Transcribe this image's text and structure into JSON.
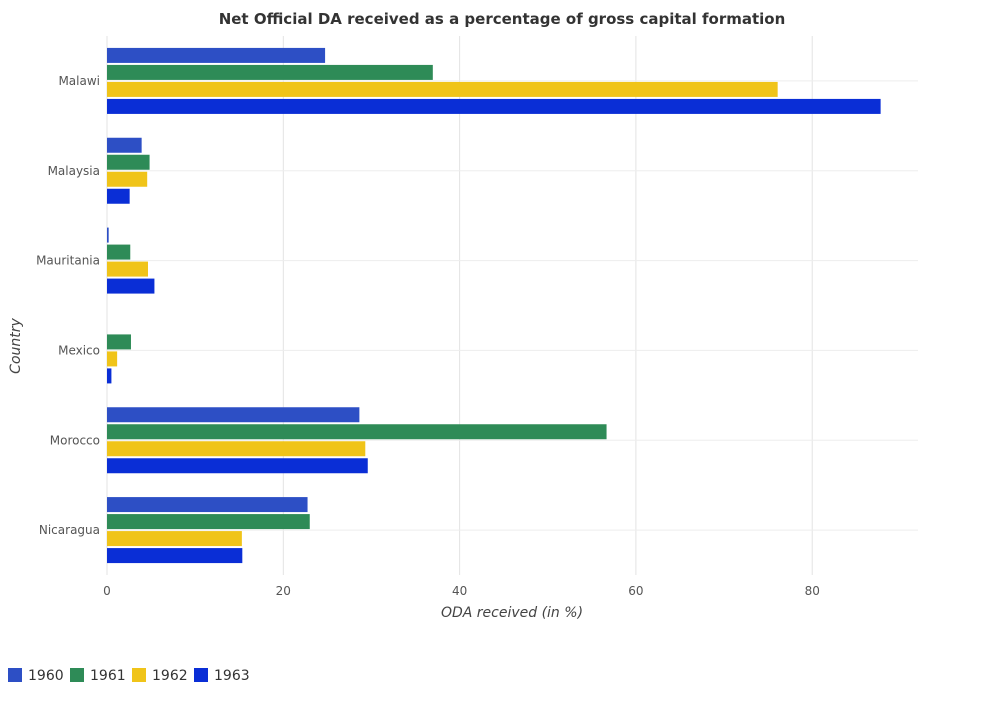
{
  "chart_data": {
    "type": "bar",
    "orientation": "horizontal",
    "title": "Net Official DA received as a percentage of gross capital formation",
    "xlabel": "ODA received (in %)",
    "ylabel": "Country",
    "xlim": [
      0,
      92
    ],
    "xticks": [
      0,
      20,
      40,
      60,
      80
    ],
    "xtick_labels": [
      "0",
      "20",
      "40",
      "60",
      "80"
    ],
    "grid": true,
    "legend_position": "bottom-left",
    "categories": [
      "Malawi",
      "Malaysia",
      "Mauritania",
      "Mexico",
      "Morocco",
      "Nicaragua"
    ],
    "series": [
      {
        "name": "1960",
        "color": "#2d4fc5",
        "values": [
          24.74,
          3.93,
          0.19,
          0.0,
          28.63,
          22.75
        ]
      },
      {
        "name": "1961",
        "color": "#2e8b57",
        "values": [
          36.96,
          4.83,
          2.64,
          2.72,
          56.67,
          23.0
        ]
      },
      {
        "name": "1962",
        "color": "#f0c419",
        "values": [
          76.08,
          4.56,
          4.65,
          1.15,
          29.3,
          15.3
        ]
      },
      {
        "name": "1963",
        "color": "#0a2ed6",
        "values": [
          87.76,
          2.57,
          5.38,
          0.5,
          29.58,
          15.35
        ]
      }
    ]
  }
}
